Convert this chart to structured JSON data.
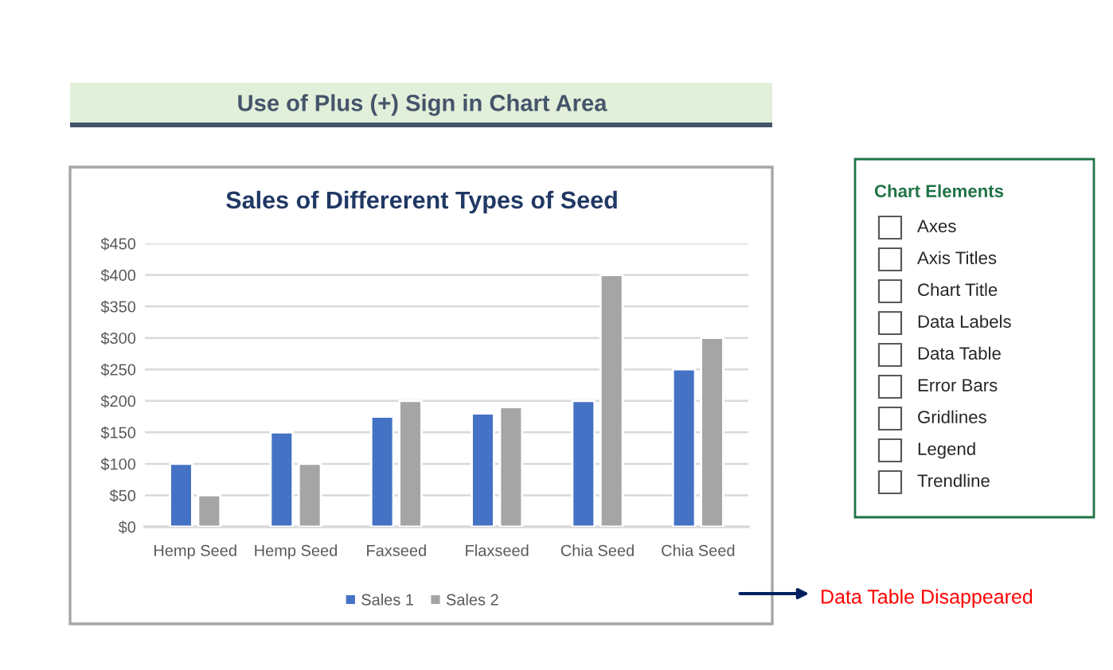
{
  "chart_data": [
    {
      "type": "bar",
      "title": "Sales of Differerent Types of Seed",
      "categories": [
        "Hemp Seed",
        "Hemp Seed",
        "Faxseed",
        "Flaxseed",
        "Chia Seed",
        "Chia Seed"
      ],
      "series": [
        {
          "name": "Sales 1",
          "color": "#4472c4",
          "values": [
            100,
            150,
            175,
            180,
            200,
            250
          ]
        },
        {
          "name": "Sales 2",
          "color": "#a5a5a5",
          "values": [
            50,
            100,
            200,
            190,
            400,
            300
          ]
        }
      ],
      "ylim": [
        0,
        450
      ],
      "yticks": [
        {
          "value": 0,
          "label": "$0"
        },
        {
          "value": 50,
          "label": "$50"
        },
        {
          "value": 100,
          "label": "$100"
        },
        {
          "value": 150,
          "label": "$150"
        },
        {
          "value": 200,
          "label": "$200"
        },
        {
          "value": 250,
          "label": "$250"
        },
        {
          "value": 300,
          "label": "$300"
        },
        {
          "value": 350,
          "label": "$350"
        },
        {
          "value": 400,
          "label": "$400"
        },
        {
          "value": 450,
          "label": "$450"
        }
      ],
      "grid": "y",
      "legend": "bottom",
      "annotations": [
        "Use of Plus (+) Sign in Chart Area",
        "Data Table Disappeared"
      ]
    },
    {
      "type": "other",
      "title": "Chart Elements",
      "annotations": [
        "Axes",
        "Axis Titles",
        "Chart Title",
        "Data Labels",
        "Data Table",
        "Error Bars",
        "Gridlines",
        "Legend",
        "Trendline"
      ]
    }
  ]
}
